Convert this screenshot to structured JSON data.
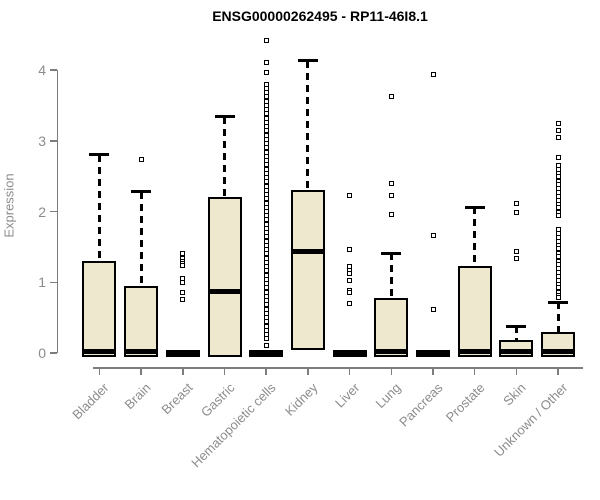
{
  "chart_data": {
    "type": "boxplot",
    "title": "ENSG00000262495 - RP11-46I8.1",
    "ylabel": "Expression",
    "xlabel": "",
    "ylim": [
      0,
      4.45
    ],
    "y_ticks": [
      0,
      1,
      2,
      3,
      4
    ],
    "grid": false,
    "legend": "none",
    "categories": [
      "Bladder",
      "Brain",
      "Breast",
      "Gastric",
      "Hematopoietic cells",
      "Kidney",
      "Liver",
      "Lung",
      "Pancreas",
      "Prostate",
      "Skin",
      "Unknown / Other"
    ],
    "series": [
      {
        "name": "Bladder",
        "whisker_low": 0,
        "q1": 0,
        "median": 0.02,
        "q3": 1.3,
        "whisker_high": 2.8,
        "outliers": []
      },
      {
        "name": "Brain",
        "whisker_low": 0,
        "q1": 0,
        "median": 0.02,
        "q3": 0.95,
        "whisker_high": 2.28,
        "outliers": [
          2.73
        ]
      },
      {
        "name": "Breast",
        "whisker_low": 0,
        "q1": 0,
        "median": 0.01,
        "q3": 0.02,
        "whisker_high": 0.02,
        "outliers": [
          1.41,
          1.34,
          1.3,
          1.27,
          1.23,
          1.05,
          1.0,
          0.86,
          0.76
        ]
      },
      {
        "name": "Gastric",
        "whisker_low": 0,
        "q1": 0,
        "median": 0.87,
        "q3": 2.21,
        "whisker_high": 3.34,
        "outliers": []
      },
      {
        "name": "Hematopoietic cells",
        "whisker_low": 0,
        "q1": 0,
        "median": 0.01,
        "q3": 0.02,
        "whisker_high": 0.02,
        "outliers": [
          4.41,
          4.1,
          3.96,
          3.8,
          3.74,
          3.68,
          3.62,
          3.56,
          3.5,
          3.44,
          3.38,
          3.32,
          3.26,
          3.2,
          3.14,
          3.08,
          3.02,
          2.96,
          2.9,
          2.84,
          2.78,
          2.72,
          2.66,
          2.6,
          2.54,
          2.48,
          2.42,
          2.36,
          2.3,
          2.24,
          2.18,
          2.12,
          2.06,
          2.0,
          1.94,
          1.88,
          1.82,
          1.76,
          1.7,
          1.64,
          1.58,
          1.52,
          1.46,
          1.4,
          1.34,
          1.28,
          1.22,
          1.16,
          1.1,
          1.04,
          0.98,
          0.92,
          0.86,
          0.8,
          0.74,
          0.68,
          0.62,
          0.56,
          0.5,
          0.44,
          0.38,
          0.32,
          0.26,
          0.2,
          0.1
        ]
      },
      {
        "name": "Kidney",
        "whisker_low": 0.1,
        "q1": 0.1,
        "median": 1.44,
        "q3": 2.3,
        "whisker_high": 4.13,
        "outliers": []
      },
      {
        "name": "Liver",
        "whisker_low": 0,
        "q1": 0,
        "median": 0.01,
        "q3": 0.02,
        "whisker_high": 0.02,
        "outliers": [
          2.23,
          1.46,
          1.22,
          1.17,
          1.13,
          1.03,
          0.89,
          0.85,
          0.7
        ]
      },
      {
        "name": "Lung",
        "whisker_low": 0,
        "q1": 0,
        "median": 0.02,
        "q3": 0.78,
        "whisker_high": 1.41,
        "outliers": [
          3.63,
          2.39,
          2.22,
          1.96
        ]
      },
      {
        "name": "Pancreas",
        "whisker_low": 0,
        "q1": 0,
        "median": 0.01,
        "q3": 0.02,
        "whisker_high": 0.02,
        "outliers": [
          3.94,
          1.66,
          0.62
        ]
      },
      {
        "name": "Prostate",
        "whisker_low": 0,
        "q1": 0,
        "median": 0.02,
        "q3": 1.23,
        "whisker_high": 2.06,
        "outliers": []
      },
      {
        "name": "Skin",
        "whisker_low": 0,
        "q1": 0,
        "median": 0.02,
        "q3": 0.19,
        "whisker_high": 0.38,
        "outliers": [
          2.12,
          1.98,
          1.43,
          1.34
        ]
      },
      {
        "name": "Unknown / Other",
        "whisker_low": 0,
        "q1": 0,
        "median": 0.02,
        "q3": 0.29,
        "whisker_high": 0.72,
        "outliers": [
          3.25,
          3.14,
          3.05,
          2.77,
          2.65,
          2.6,
          2.54,
          2.49,
          2.43,
          2.38,
          2.32,
          2.27,
          2.21,
          2.16,
          2.1,
          2.05,
          1.99,
          1.94,
          1.74,
          1.69,
          1.63,
          1.58,
          1.52,
          1.47,
          1.41,
          1.36,
          1.3,
          1.25,
          1.19,
          1.14,
          1.08,
          1.03,
          0.97,
          0.92,
          0.86,
          0.81,
          0.78
        ]
      }
    ]
  },
  "colors": {
    "box_fill": "#EDE8CE",
    "box_border": "#000000",
    "median": "#000000",
    "whisker": "#000000",
    "outlier_border": "#000000",
    "outlier_fill": "#FFFFFF",
    "axis": "#7D7D7D",
    "tick_label": "#8C8C8C",
    "title": "#000000",
    "background": "#FFFFFF"
  }
}
